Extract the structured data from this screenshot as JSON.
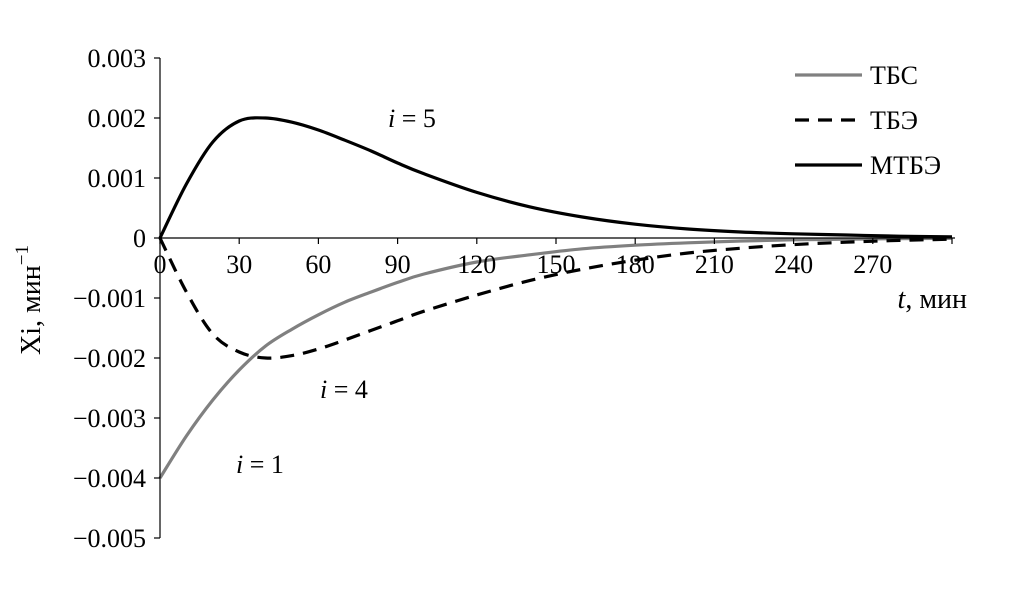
{
  "chart_data": {
    "type": "line",
    "title": "",
    "xlabel": "t, мин",
    "xlabel_italic": "t",
    "xlabel_rest": ", мин",
    "ylabel": "Xi, мин⁻¹",
    "ylabel_main": "Xi, мин",
    "ylabel_sup": "−1",
    "xlim": [
      0,
      300
    ],
    "ylim": [
      -0.005,
      0.003
    ],
    "xticks": [
      "0",
      "30",
      "60",
      "90",
      "120",
      "150",
      "180",
      "210",
      "240",
      "270"
    ],
    "yticks": [
      "0.003",
      "0.002",
      "0.001",
      "0",
      "−0.001",
      "−0.002",
      "−0.003",
      "−0.004",
      "−0.005"
    ],
    "grid": false,
    "legend_position": "top-right",
    "x": [
      0,
      10,
      20,
      30,
      40,
      50,
      60,
      70,
      80,
      90,
      100,
      120,
      140,
      160,
      180,
      200,
      220,
      240,
      260,
      280,
      300
    ],
    "series": [
      {
        "name": "ТБС",
        "color": "#808080",
        "dash": "solid",
        "values": [
          -0.004,
          -0.0033,
          -0.0027,
          -0.0022,
          -0.0018,
          -0.00152,
          -0.00128,
          -0.00107,
          -0.0009,
          -0.00074,
          -0.0006,
          -0.0004,
          -0.00028,
          -0.00018,
          -0.00012,
          -8e-05,
          -5e-05,
          -3e-05,
          -2e-05,
          -1e-05,
          -5e-06
        ]
      },
      {
        "name": "ТБЭ",
        "color": "#000000",
        "dash": "dashed",
        "values": [
          0,
          -0.0009,
          -0.0016,
          -0.0019,
          -0.002,
          -0.00196,
          -0.00185,
          -0.0017,
          -0.00154,
          -0.00138,
          -0.00122,
          -0.00095,
          -0.00071,
          -0.00052,
          -0.00037,
          -0.00025,
          -0.00017,
          -0.00011,
          -7e-05,
          -4e-05,
          -2e-05
        ]
      },
      {
        "name": "МТБЭ",
        "color": "#000000",
        "dash": "solid",
        "values": [
          0,
          0.0009,
          0.0016,
          0.00195,
          0.002,
          0.00193,
          0.0018,
          0.00163,
          0.00145,
          0.00125,
          0.00107,
          0.00076,
          0.00052,
          0.00035,
          0.00023,
          0.00015,
          0.0001,
          7e-05,
          5e-05,
          3e-05,
          2e-05
        ]
      }
    ],
    "annotations": [
      {
        "italic": "i",
        "text": " = 5"
      },
      {
        "italic": "i",
        "text": " = 4"
      },
      {
        "italic": "i",
        "text": " = 1"
      }
    ]
  }
}
